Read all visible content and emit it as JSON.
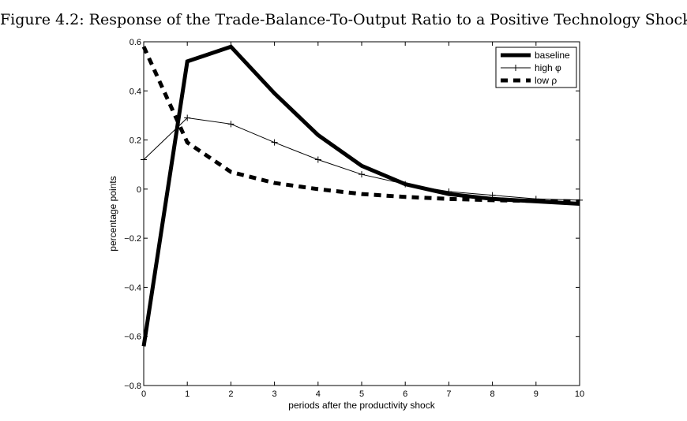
{
  "figure_caption": "Figure 4.2: Response of the Trade-Balance-To-Output Ratio to a Positive Technology Shock",
  "chart_data": {
    "type": "line",
    "xlabel": "periods after the productivity shock",
    "ylabel": "percentage points",
    "xlim": [
      0,
      10
    ],
    "ylim": [
      -0.8,
      0.6
    ],
    "xticks": [
      0,
      1,
      2,
      3,
      4,
      5,
      6,
      7,
      8,
      9,
      10
    ],
    "yticks": [
      -0.8,
      -0.6,
      -0.4,
      -0.2,
      0,
      0.2,
      0.4,
      0.6
    ],
    "ytick_labels": [
      "−0.8",
      "−0.6",
      "−0.4",
      "−0.2",
      "0",
      "0.2",
      "0.4",
      "0.6"
    ],
    "grid": false,
    "legend_position": "top-right",
    "x": [
      0,
      1,
      2,
      3,
      4,
      5,
      6,
      7,
      8,
      9,
      10
    ],
    "series": [
      {
        "name": "baseline",
        "style": "thick-solid",
        "color": "#000000",
        "values": [
          -0.64,
          0.52,
          0.58,
          0.39,
          0.22,
          0.095,
          0.02,
          -0.02,
          -0.04,
          -0.05,
          -0.06
        ]
      },
      {
        "name": "high φ",
        "style": "thin-plus",
        "color": "#000000",
        "values": [
          0.12,
          0.29,
          0.265,
          0.19,
          0.12,
          0.06,
          0.02,
          -0.01,
          -0.025,
          -0.04,
          -0.045
        ]
      },
      {
        "name": "low ρ",
        "style": "thick-dashed",
        "color": "#000000",
        "values": [
          0.58,
          0.19,
          0.07,
          0.025,
          0.0,
          -0.02,
          -0.032,
          -0.04,
          -0.045,
          -0.048,
          -0.05
        ]
      }
    ]
  }
}
